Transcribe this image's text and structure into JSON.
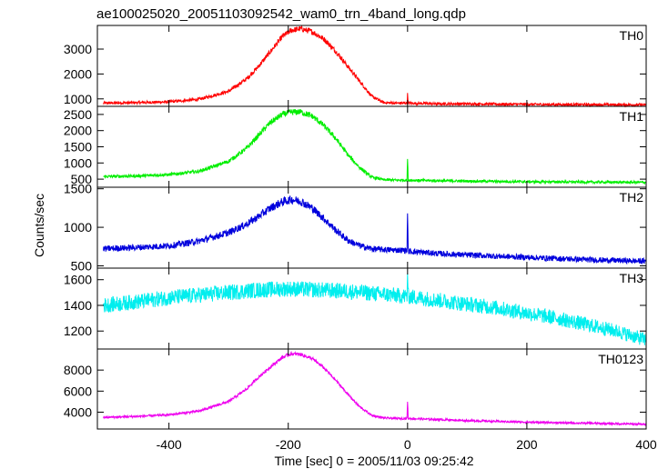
{
  "chart_data": {
    "type": "line",
    "title": "ae100025020_20051103092542_wam0_trn_4band_long.qdp",
    "xlabel": "Time [sec] 0 = 2005/11/03 09:25:42",
    "ylabel": "Counts/sec",
    "xlim": [
      -520,
      400
    ],
    "xticks": [
      -400,
      -200,
      0,
      200,
      400
    ],
    "grid": false,
    "panels": [
      {
        "name": "TH0",
        "color": "#ff0000",
        "ylim": [
          700,
          3950
        ],
        "yticks": [
          1000,
          2000,
          3000
        ],
        "x": [
          -510,
          -450,
          -400,
          -350,
          -300,
          -270,
          -250,
          -230,
          -210,
          -195,
          -180,
          -160,
          -140,
          -120,
          -100,
          -80,
          -60,
          -40,
          -20,
          -1,
          0,
          1,
          50,
          100,
          200,
          300,
          400
        ],
        "y": [
          830,
          850,
          880,
          980,
          1300,
          1800,
          2300,
          2900,
          3500,
          3750,
          3820,
          3700,
          3400,
          2900,
          2300,
          1700,
          1100,
          850,
          830,
          830,
          1180,
          830,
          800,
          800,
          780,
          770,
          760
        ],
        "noise": 55
      },
      {
        "name": "TH1",
        "color": "#00ee00",
        "ylim": [
          250,
          2750
        ],
        "yticks": [
          500,
          1000,
          1500,
          2000,
          2500
        ],
        "x": [
          -510,
          -450,
          -400,
          -350,
          -300,
          -270,
          -250,
          -230,
          -210,
          -195,
          -180,
          -160,
          -140,
          -120,
          -100,
          -80,
          -60,
          -40,
          -20,
          -1,
          0,
          1,
          50,
          100,
          200,
          300,
          400
        ],
        "y": [
          580,
          600,
          640,
          740,
          1050,
          1450,
          1850,
          2250,
          2500,
          2570,
          2580,
          2450,
          2150,
          1750,
          1250,
          850,
          560,
          480,
          470,
          470,
          1150,
          470,
          450,
          440,
          420,
          410,
          400
        ],
        "noise": 45
      },
      {
        "name": "TH2",
        "color": "#0000dd",
        "ylim": [
          470,
          1520
        ],
        "yticks": [
          500,
          1000,
          1500
        ],
        "x": [
          -510,
          -450,
          -400,
          -350,
          -300,
          -270,
          -250,
          -230,
          -210,
          -195,
          -180,
          -160,
          -140,
          -120,
          -100,
          -80,
          -60,
          -40,
          -20,
          -1,
          0,
          1,
          50,
          100,
          200,
          300,
          400
        ],
        "y": [
          720,
          740,
          760,
          820,
          930,
          1040,
          1140,
          1250,
          1330,
          1360,
          1340,
          1250,
          1110,
          960,
          830,
          760,
          720,
          710,
          705,
          700,
          1230,
          690,
          660,
          640,
          610,
          580,
          560
        ],
        "noise": 40
      },
      {
        "name": "TH3",
        "color": "#00eeee",
        "ylim": [
          1060,
          1690
        ],
        "yticks": [
          1200,
          1400,
          1600
        ],
        "x": [
          -510,
          -450,
          -400,
          -350,
          -300,
          -250,
          -200,
          -150,
          -100,
          -50,
          -1,
          0,
          1,
          50,
          100,
          150,
          200,
          250,
          300,
          350,
          400
        ],
        "y": [
          1400,
          1430,
          1460,
          1480,
          1500,
          1520,
          1530,
          1520,
          1510,
          1490,
          1470,
          1660,
          1470,
          1440,
          1410,
          1380,
          1340,
          1300,
          1250,
          1200,
          1130
        ],
        "noise": 60
      },
      {
        "name": "TH0123",
        "color": "#ee00ee",
        "ylim": [
          2400,
          10000
        ],
        "yticks": [
          4000,
          6000,
          8000
        ],
        "x": [
          -510,
          -450,
          -400,
          -350,
          -300,
          -270,
          -250,
          -230,
          -210,
          -195,
          -180,
          -160,
          -140,
          -120,
          -100,
          -80,
          -60,
          -40,
          -20,
          -1,
          0,
          1,
          50,
          100,
          200,
          300,
          400
        ],
        "y": [
          3500,
          3600,
          3750,
          4100,
          5000,
          6200,
          7300,
          8300,
          9200,
          9550,
          9500,
          9100,
          8200,
          7000,
          5700,
          4500,
          3700,
          3450,
          3400,
          3400,
          5100,
          3400,
          3300,
          3200,
          3050,
          2950,
          2850
        ],
        "noise": 100
      }
    ]
  }
}
